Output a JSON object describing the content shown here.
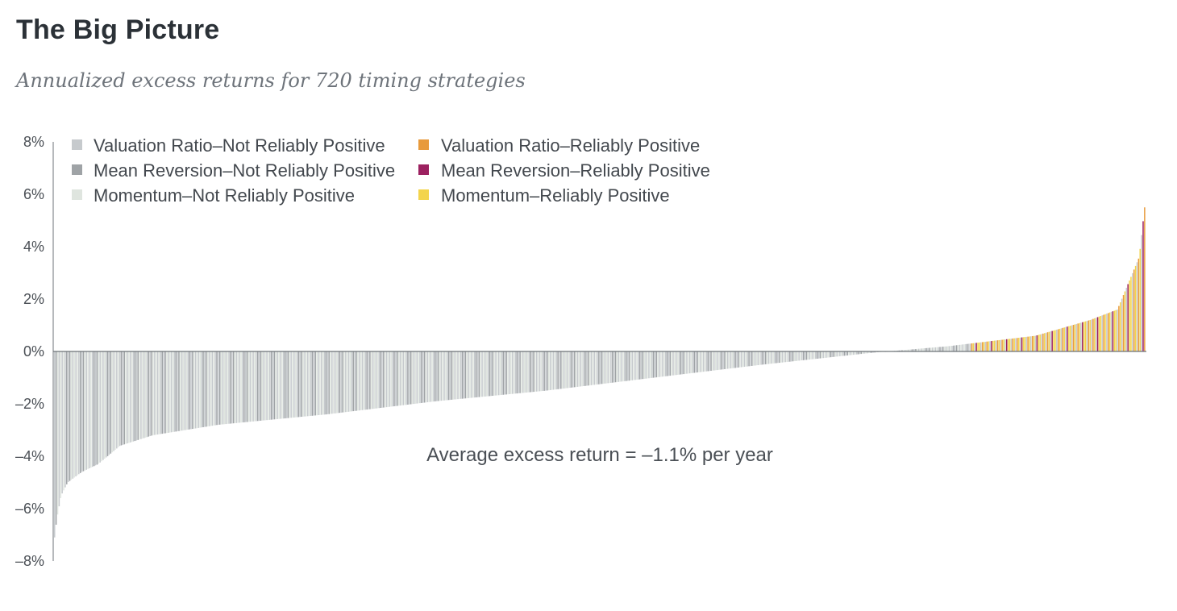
{
  "title": "The Big Picture",
  "subtitle": "Annualized excess returns for 720 timing strategies",
  "colors": {
    "valuation_not": "#c6cacd",
    "mean_rev_not": "#9fa3a6",
    "momentum_not": "#dfe5df",
    "valuation_reliable": "#e89a3c",
    "mean_rev_reliable": "#9c2160",
    "momentum_reliable": "#f3d44c",
    "axis": "#6e7378"
  },
  "chart_data": {
    "type": "bar",
    "xlabel": "",
    "ylabel": "",
    "ylim": [
      -8,
      8
    ],
    "y_ticks": [
      {
        "value": 8,
        "label": "8%"
      },
      {
        "value": 6,
        "label": "6%"
      },
      {
        "value": 4,
        "label": "4%"
      },
      {
        "value": 2,
        "label": "2%"
      },
      {
        "value": 0,
        "label": "0%"
      },
      {
        "value": -2,
        "label": "–2%"
      },
      {
        "value": -4,
        "label": "–4%"
      },
      {
        "value": -6,
        "label": "–6%"
      },
      {
        "value": -8,
        "label": "–8%"
      }
    ],
    "legend": [
      {
        "name": "Valuation Ratio–Not Reliably Positive",
        "color_key": "valuation_not"
      },
      {
        "name": "Mean Reversion–Not Reliably Positive",
        "color_key": "mean_rev_not"
      },
      {
        "name": "Momentum–Not Reliably Positive",
        "color_key": "momentum_not"
      },
      {
        "name": "Valuation Ratio–Reliably Positive",
        "color_key": "valuation_reliable"
      },
      {
        "name": "Mean Reversion–Reliably Positive",
        "color_key": "mean_rev_reliable"
      },
      {
        "name": "Momentum–Reliably Positive",
        "color_key": "momentum_reliable"
      }
    ],
    "legend_position": "top-left",
    "sorted_ascending": true,
    "bar_count": 720,
    "value_profile": [
      {
        "rank_fraction": 0.0,
        "value": -7.1
      },
      {
        "rank_fraction": 0.002,
        "value": -6.4
      },
      {
        "rank_fraction": 0.006,
        "value": -5.5
      },
      {
        "rank_fraction": 0.012,
        "value": -5.0
      },
      {
        "rank_fraction": 0.025,
        "value": -4.6
      },
      {
        "rank_fraction": 0.04,
        "value": -4.3
      },
      {
        "rank_fraction": 0.06,
        "value": -3.6
      },
      {
        "rank_fraction": 0.09,
        "value": -3.2
      },
      {
        "rank_fraction": 0.15,
        "value": -2.8
      },
      {
        "rank_fraction": 0.25,
        "value": -2.4
      },
      {
        "rank_fraction": 0.35,
        "value": -1.9
      },
      {
        "rank_fraction": 0.45,
        "value": -1.5
      },
      {
        "rank_fraction": 0.55,
        "value": -1.0
      },
      {
        "rank_fraction": 0.65,
        "value": -0.5
      },
      {
        "rank_fraction": 0.75,
        "value": -0.05
      },
      {
        "rank_fraction": 0.82,
        "value": 0.2
      },
      {
        "rank_fraction": 0.9,
        "value": 0.6
      },
      {
        "rank_fraction": 0.95,
        "value": 1.2
      },
      {
        "rank_fraction": 0.975,
        "value": 1.6
      },
      {
        "rank_fraction": 0.985,
        "value": 2.6
      },
      {
        "rank_fraction": 0.995,
        "value": 3.6
      },
      {
        "rank_fraction": 1.0,
        "value": 5.5
      }
    ],
    "annotation": "Average excess return = –1.1% per year"
  }
}
